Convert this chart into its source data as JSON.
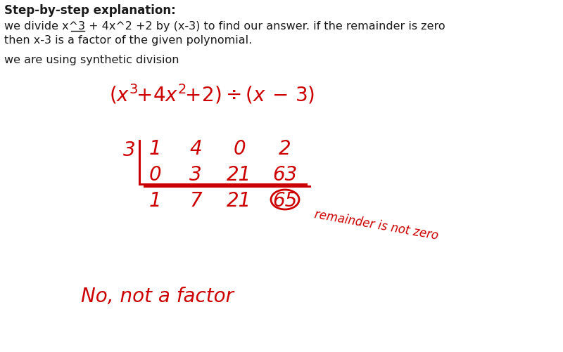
{
  "bg_color": "#ffffff",
  "red_color": "#cc0000",
  "black_color": "#1a1a1a",
  "figsize": [
    8.0,
    5.01
  ],
  "dpi": 100,
  "title": "Step-by-step explanation:",
  "body_line1": "we divide x^3 + 4x̲^2 +2 by (x-3) to find our answer. if the remainder is zero",
  "body_line2": "then x-3 is a factor of the given polynomial.",
  "body_line3": "we are using synthetic division",
  "synth_3": "3",
  "top_coeffs": [
    "1",
    "4",
    "0",
    "2"
  ],
  "mid_coeffs": [
    "0",
    "3",
    "21",
    "63"
  ],
  "bot_coeffs": [
    "1",
    "7",
    "21",
    "65"
  ],
  "remainder_label": "remainder is not zero",
  "conclusion": "No, not a factor"
}
